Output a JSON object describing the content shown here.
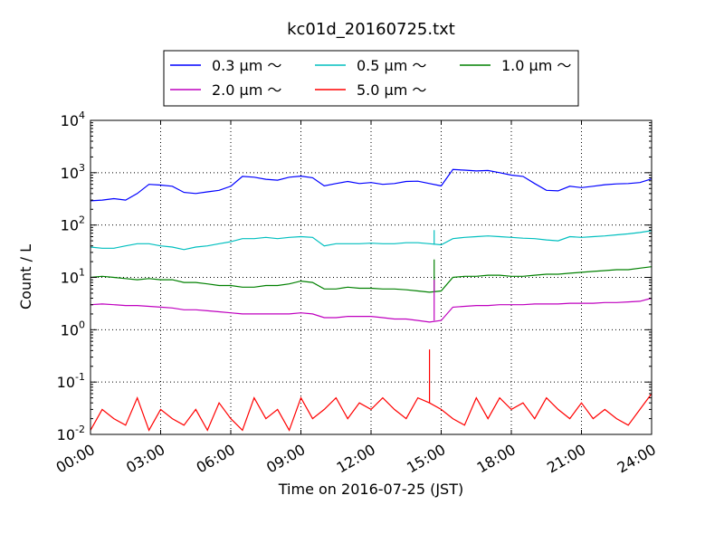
{
  "chart_data": {
    "type": "line",
    "title": "kc01d_20160725.txt",
    "xlabel": "Time on 2016-07-25 (JST)",
    "ylabel": "Count / L",
    "yscale": "log",
    "ylim": [
      0.01,
      10000
    ],
    "xlim": [
      "00:00",
      "24:00"
    ],
    "grid": true,
    "legend_position": "top-center",
    "x_ticks": [
      "00:00",
      "03:00",
      "06:00",
      "09:00",
      "12:00",
      "15:00",
      "18:00",
      "21:00",
      "24:00"
    ],
    "y_ticks": [
      {
        "value": 0.01,
        "base": "10",
        "exp": "-2"
      },
      {
        "value": 0.1,
        "base": "10",
        "exp": "-1"
      },
      {
        "value": 1,
        "base": "10",
        "exp": "0"
      },
      {
        "value": 10,
        "base": "10",
        "exp": "1"
      },
      {
        "value": 100,
        "base": "10",
        "exp": "2"
      },
      {
        "value": 1000,
        "base": "10",
        "exp": "3"
      },
      {
        "value": 10000,
        "base": "10",
        "exp": "4"
      }
    ],
    "x": [
      "00:00",
      "00:30",
      "01:00",
      "01:30",
      "02:00",
      "02:30",
      "03:00",
      "03:30",
      "04:00",
      "04:30",
      "05:00",
      "05:30",
      "06:00",
      "06:30",
      "07:00",
      "07:30",
      "08:00",
      "08:30",
      "09:00",
      "09:30",
      "10:00",
      "10:30",
      "11:00",
      "11:30",
      "12:00",
      "12:30",
      "13:00",
      "13:30",
      "14:00",
      "14:30",
      "15:00",
      "15:30",
      "16:00",
      "16:30",
      "17:00",
      "17:30",
      "18:00",
      "18:30",
      "19:00",
      "19:30",
      "20:00",
      "20:30",
      "21:00",
      "21:30",
      "22:00",
      "22:30",
      "23:00",
      "23:30",
      "24:00"
    ],
    "series": [
      {
        "name": "0.3 μm ～",
        "color": "#0000ff",
        "values": [
          290,
          300,
          320,
          300,
          400,
          600,
          580,
          550,
          420,
          400,
          430,
          460,
          550,
          850,
          820,
          750,
          720,
          820,
          860,
          800,
          560,
          620,
          680,
          620,
          650,
          600,
          620,
          680,
          690,
          620,
          560,
          1150,
          1120,
          1080,
          1100,
          1000,
          900,
          850,
          620,
          460,
          450,
          550,
          520,
          550,
          590,
          610,
          620,
          650,
          760
        ]
      },
      {
        "name": "0.5 μm ～",
        "color": "#00bfbf",
        "values": [
          38,
          36,
          36,
          40,
          44,
          44,
          40,
          38,
          34,
          38,
          40,
          44,
          48,
          55,
          55,
          58,
          55,
          58,
          60,
          58,
          40,
          44,
          44,
          44,
          45,
          44,
          44,
          46,
          46,
          44,
          42,
          55,
          58,
          60,
          62,
          60,
          58,
          56,
          55,
          52,
          50,
          60,
          58,
          60,
          62,
          65,
          68,
          72,
          78
        ]
      },
      {
        "name": "1.0 μm ～",
        "color": "#008000",
        "values": [
          10,
          10.5,
          10,
          9.5,
          9,
          9.5,
          9,
          9,
          8,
          8,
          7.5,
          7,
          7,
          6.5,
          6.5,
          7,
          7,
          7.5,
          8.5,
          8,
          6,
          6,
          6.5,
          6.2,
          6.2,
          6,
          6,
          5.8,
          5.5,
          5.2,
          5.5,
          10,
          10.5,
          10.5,
          11,
          11,
          10.5,
          10.5,
          11,
          11.5,
          11.5,
          12,
          12.5,
          13,
          13.5,
          14,
          14,
          15,
          16
        ]
      },
      {
        "name": "2.0 μm ～",
        "color": "#bf00bf",
        "values": [
          3,
          3.1,
          3,
          2.9,
          2.9,
          2.8,
          2.7,
          2.6,
          2.4,
          2.4,
          2.3,
          2.2,
          2.1,
          2,
          2,
          2,
          2,
          2,
          2.1,
          2,
          1.7,
          1.7,
          1.8,
          1.8,
          1.8,
          1.7,
          1.6,
          1.6,
          1.5,
          1.4,
          1.5,
          2.7,
          2.8,
          2.9,
          2.9,
          3,
          3,
          3,
          3.1,
          3.1,
          3.1,
          3.2,
          3.2,
          3.2,
          3.3,
          3.3,
          3.4,
          3.5,
          4
        ]
      },
      {
        "name": "5.0 μm ～",
        "color": "#ff0000",
        "values": [
          0.012,
          0.03,
          0.02,
          0.015,
          0.05,
          0.012,
          0.03,
          0.02,
          0.015,
          0.03,
          0.012,
          0.04,
          0.02,
          0.012,
          0.05,
          0.02,
          0.03,
          0.012,
          0.05,
          0.02,
          0.03,
          0.05,
          0.02,
          0.04,
          0.03,
          0.05,
          0.03,
          0.02,
          0.05,
          0.04,
          0.03,
          0.02,
          0.015,
          0.05,
          0.02,
          0.05,
          0.03,
          0.04,
          0.02,
          0.05,
          0.03,
          0.02,
          0.04,
          0.02,
          0.03,
          0.02,
          0.015,
          0.03,
          0.06
        ]
      }
    ],
    "annotations": [
      {
        "series": "1.0 μm ～",
        "x": "14:42",
        "y": 22,
        "note": "spike"
      },
      {
        "series": "0.5 μm ～",
        "x": "14:42",
        "y": 80,
        "note": "spike"
      },
      {
        "series": "2.0 μm ～",
        "x": "14:42",
        "y": 9,
        "note": "spike"
      },
      {
        "series": "5.0 μm ～",
        "x": "14:30",
        "y": 0.42,
        "note": "spike"
      }
    ]
  }
}
